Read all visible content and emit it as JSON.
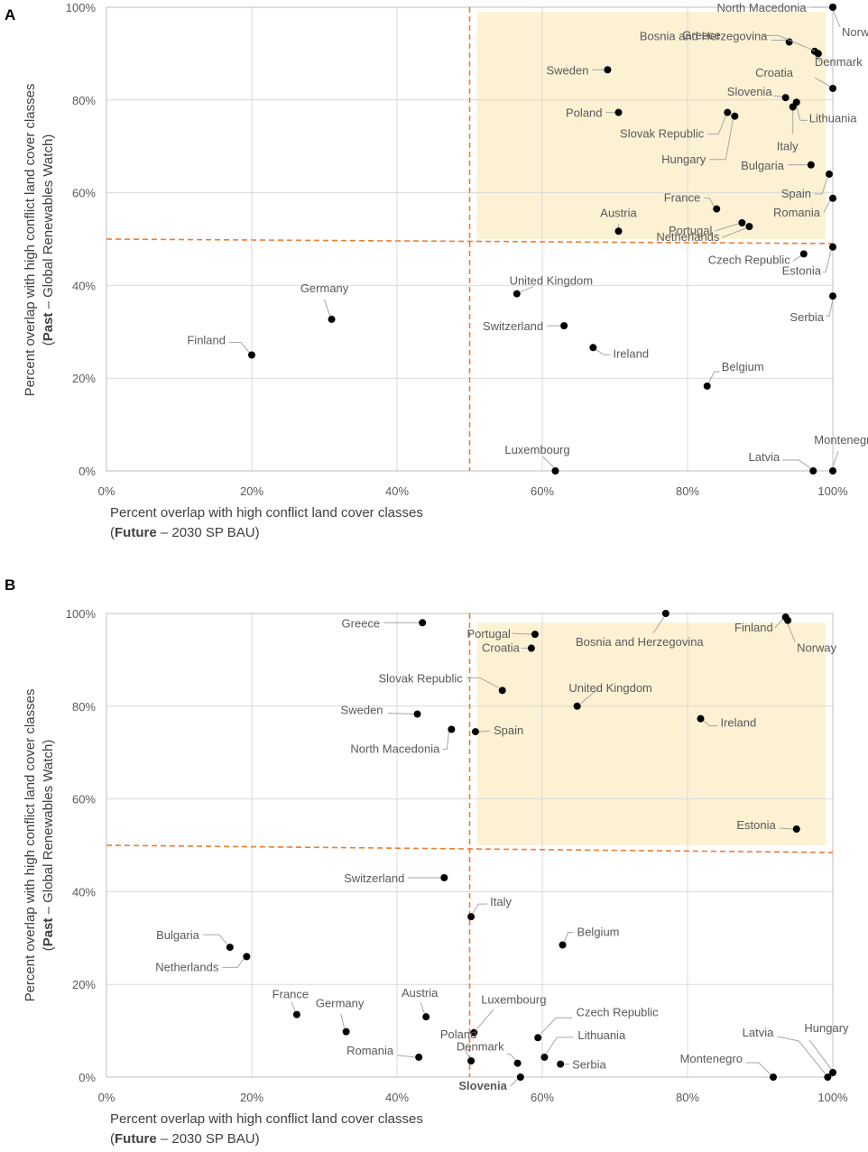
{
  "chart_data": [
    {
      "panel": "A",
      "type": "scatter",
      "xlabel_line1": "Percent overlap with high conflict land cover classes",
      "xlabel_bold": "Future",
      "xlabel_rest": " – 2030 SP BAU)",
      "ylabel_line1": "Percent overlap with high conflict land cover classes",
      "ylabel_bold": "Past",
      "ylabel_rest": " – Global Renewables Watch)",
      "xlim": [
        0,
        100
      ],
      "ylim": [
        0,
        100
      ],
      "x_ticks": [
        "0%",
        "20%",
        "40%",
        "60%",
        "80%",
        "100%"
      ],
      "y_ticks": [
        "0%",
        "20%",
        "40%",
        "60%",
        "80%",
        "100%"
      ],
      "threshold_x": 50,
      "threshold_y": 50,
      "highlight": {
        "x": [
          51,
          99
        ],
        "y": [
          50,
          99
        ]
      },
      "points": [
        {
          "name": "North Macedonia",
          "x": 100,
          "y": 100
        },
        {
          "name": "Norway",
          "x": 100,
          "y": 100
        },
        {
          "name": "Bosnia and Herzegovina",
          "x": 94,
          "y": 92.5
        },
        {
          "name": "Denmark",
          "x": 97.5,
          "y": 90.5
        },
        {
          "name": "Croatia",
          "x": 100,
          "y": 82.5
        },
        {
          "name": "Greece",
          "x": 98,
          "y": 90
        },
        {
          "name": "Sweden",
          "x": 69,
          "y": 86.5
        },
        {
          "name": "Slovenia",
          "x": 93.5,
          "y": 80.5
        },
        {
          "name": "Lithuania",
          "x": 95,
          "y": 79.5
        },
        {
          "name": "Poland",
          "x": 70.5,
          "y": 77.3
        },
        {
          "name": "Slovak Republic",
          "x": 85.5,
          "y": 77.3
        },
        {
          "name": "Hungary",
          "x": 86.5,
          "y": 76.5
        },
        {
          "name": "Italy",
          "x": 94.5,
          "y": 78.5
        },
        {
          "name": "Bulgaria",
          "x": 97,
          "y": 66
        },
        {
          "name": "Spain",
          "x": 99.5,
          "y": 64
        },
        {
          "name": "France",
          "x": 84,
          "y": 56.5
        },
        {
          "name": "Romania",
          "x": 100,
          "y": 58.8
        },
        {
          "name": "Portugal",
          "x": 87.5,
          "y": 53.5
        },
        {
          "name": "Netherlands",
          "x": 88.5,
          "y": 52.7
        },
        {
          "name": "Austria",
          "x": 70.5,
          "y": 51.7
        },
        {
          "name": "Czech Republic",
          "x": 96,
          "y": 46.8
        },
        {
          "name": "Estonia",
          "x": 100,
          "y": 48.3
        },
        {
          "name": "United Kingdom",
          "x": 56.5,
          "y": 38.2
        },
        {
          "name": "Serbia",
          "x": 100,
          "y": 37.7
        },
        {
          "name": "Germany",
          "x": 31,
          "y": 32.7
        },
        {
          "name": "Switzerland",
          "x": 63,
          "y": 31.3
        },
        {
          "name": "Ireland",
          "x": 67,
          "y": 26.6
        },
        {
          "name": "Finland",
          "x": 20,
          "y": 25
        },
        {
          "name": "Belgium",
          "x": 82.7,
          "y": 18.3
        },
        {
          "name": "Luxembourg",
          "x": 61.8,
          "y": 0
        },
        {
          "name": "Latvia",
          "x": 97.3,
          "y": 0
        },
        {
          "name": "Montenegro",
          "x": 100,
          "y": 0
        }
      ]
    },
    {
      "panel": "B",
      "type": "scatter",
      "xlabel_line1": "Percent overlap with high conflict land cover classes",
      "xlabel_bold": "Future",
      "xlabel_rest": " – 2030 SP BAU)",
      "ylabel_line1": "Percent overlap with high conflict land cover classes",
      "ylabel_bold": "Past",
      "ylabel_rest": " – Global Renewables Watch)",
      "xlim": [
        0,
        100
      ],
      "ylim": [
        0,
        100
      ],
      "x_ticks": [
        "0%",
        "20%",
        "40%",
        "60%",
        "80%",
        "100%"
      ],
      "y_ticks": [
        "0%",
        "20%",
        "40%",
        "60%",
        "80%",
        "100%"
      ],
      "threshold_x": 50,
      "threshold_y": 50,
      "highlight": {
        "x": [
          51,
          99
        ],
        "y": [
          50,
          98
        ]
      },
      "points": [
        {
          "name": "Bosnia and Herzegovina",
          "x": 77,
          "y": 100
        },
        {
          "name": "Finland",
          "x": 93.5,
          "y": 99.2
        },
        {
          "name": "Norway",
          "x": 93.8,
          "y": 98.5
        },
        {
          "name": "Greece",
          "x": 43.5,
          "y": 98
        },
        {
          "name": "Portugal",
          "x": 59,
          "y": 95.5
        },
        {
          "name": "Croatia",
          "x": 58.5,
          "y": 92.5
        },
        {
          "name": "Slovak Republic",
          "x": 54.5,
          "y": 83.4
        },
        {
          "name": "United Kingdom",
          "x": 64.8,
          "y": 80
        },
        {
          "name": "Sweden",
          "x": 42.8,
          "y": 78.3
        },
        {
          "name": "Ireland",
          "x": 81.8,
          "y": 77.3
        },
        {
          "name": "North Macedonia",
          "x": 47.5,
          "y": 75
        },
        {
          "name": "Spain",
          "x": 50.8,
          "y": 74.5
        },
        {
          "name": "Estonia",
          "x": 95,
          "y": 53.5
        },
        {
          "name": "Switzerland",
          "x": 46.5,
          "y": 43
        },
        {
          "name": "Italy",
          "x": 50.2,
          "y": 34.6
        },
        {
          "name": "Belgium",
          "x": 62.8,
          "y": 28.5
        },
        {
          "name": "Bulgaria",
          "x": 17,
          "y": 28
        },
        {
          "name": "Netherlands",
          "x": 19.3,
          "y": 26
        },
        {
          "name": "France",
          "x": 26.2,
          "y": 13.5
        },
        {
          "name": "Austria",
          "x": 44,
          "y": 13
        },
        {
          "name": "Germany",
          "x": 33,
          "y": 9.8
        },
        {
          "name": "Luxembourg",
          "x": 50.6,
          "y": 9.6
        },
        {
          "name": "Czech Republic",
          "x": 59.4,
          "y": 8.5
        },
        {
          "name": "Romania",
          "x": 43,
          "y": 4.3
        },
        {
          "name": "Lithuania",
          "x": 60.3,
          "y": 4.3
        },
        {
          "name": "Poland",
          "x": 50.2,
          "y": 3.5
        },
        {
          "name": "Denmark",
          "x": 56.6,
          "y": 3
        },
        {
          "name": "Serbia",
          "x": 62.5,
          "y": 2.8
        },
        {
          "name": "Hungary",
          "x": 100,
          "y": 1
        },
        {
          "name": "Montenegro",
          "x": 91.8,
          "y": 0
        },
        {
          "name": "Latvia",
          "x": 99.3,
          "y": 0
        },
        {
          "name": "Slovenia",
          "x": 57,
          "y": 0
        }
      ]
    }
  ]
}
